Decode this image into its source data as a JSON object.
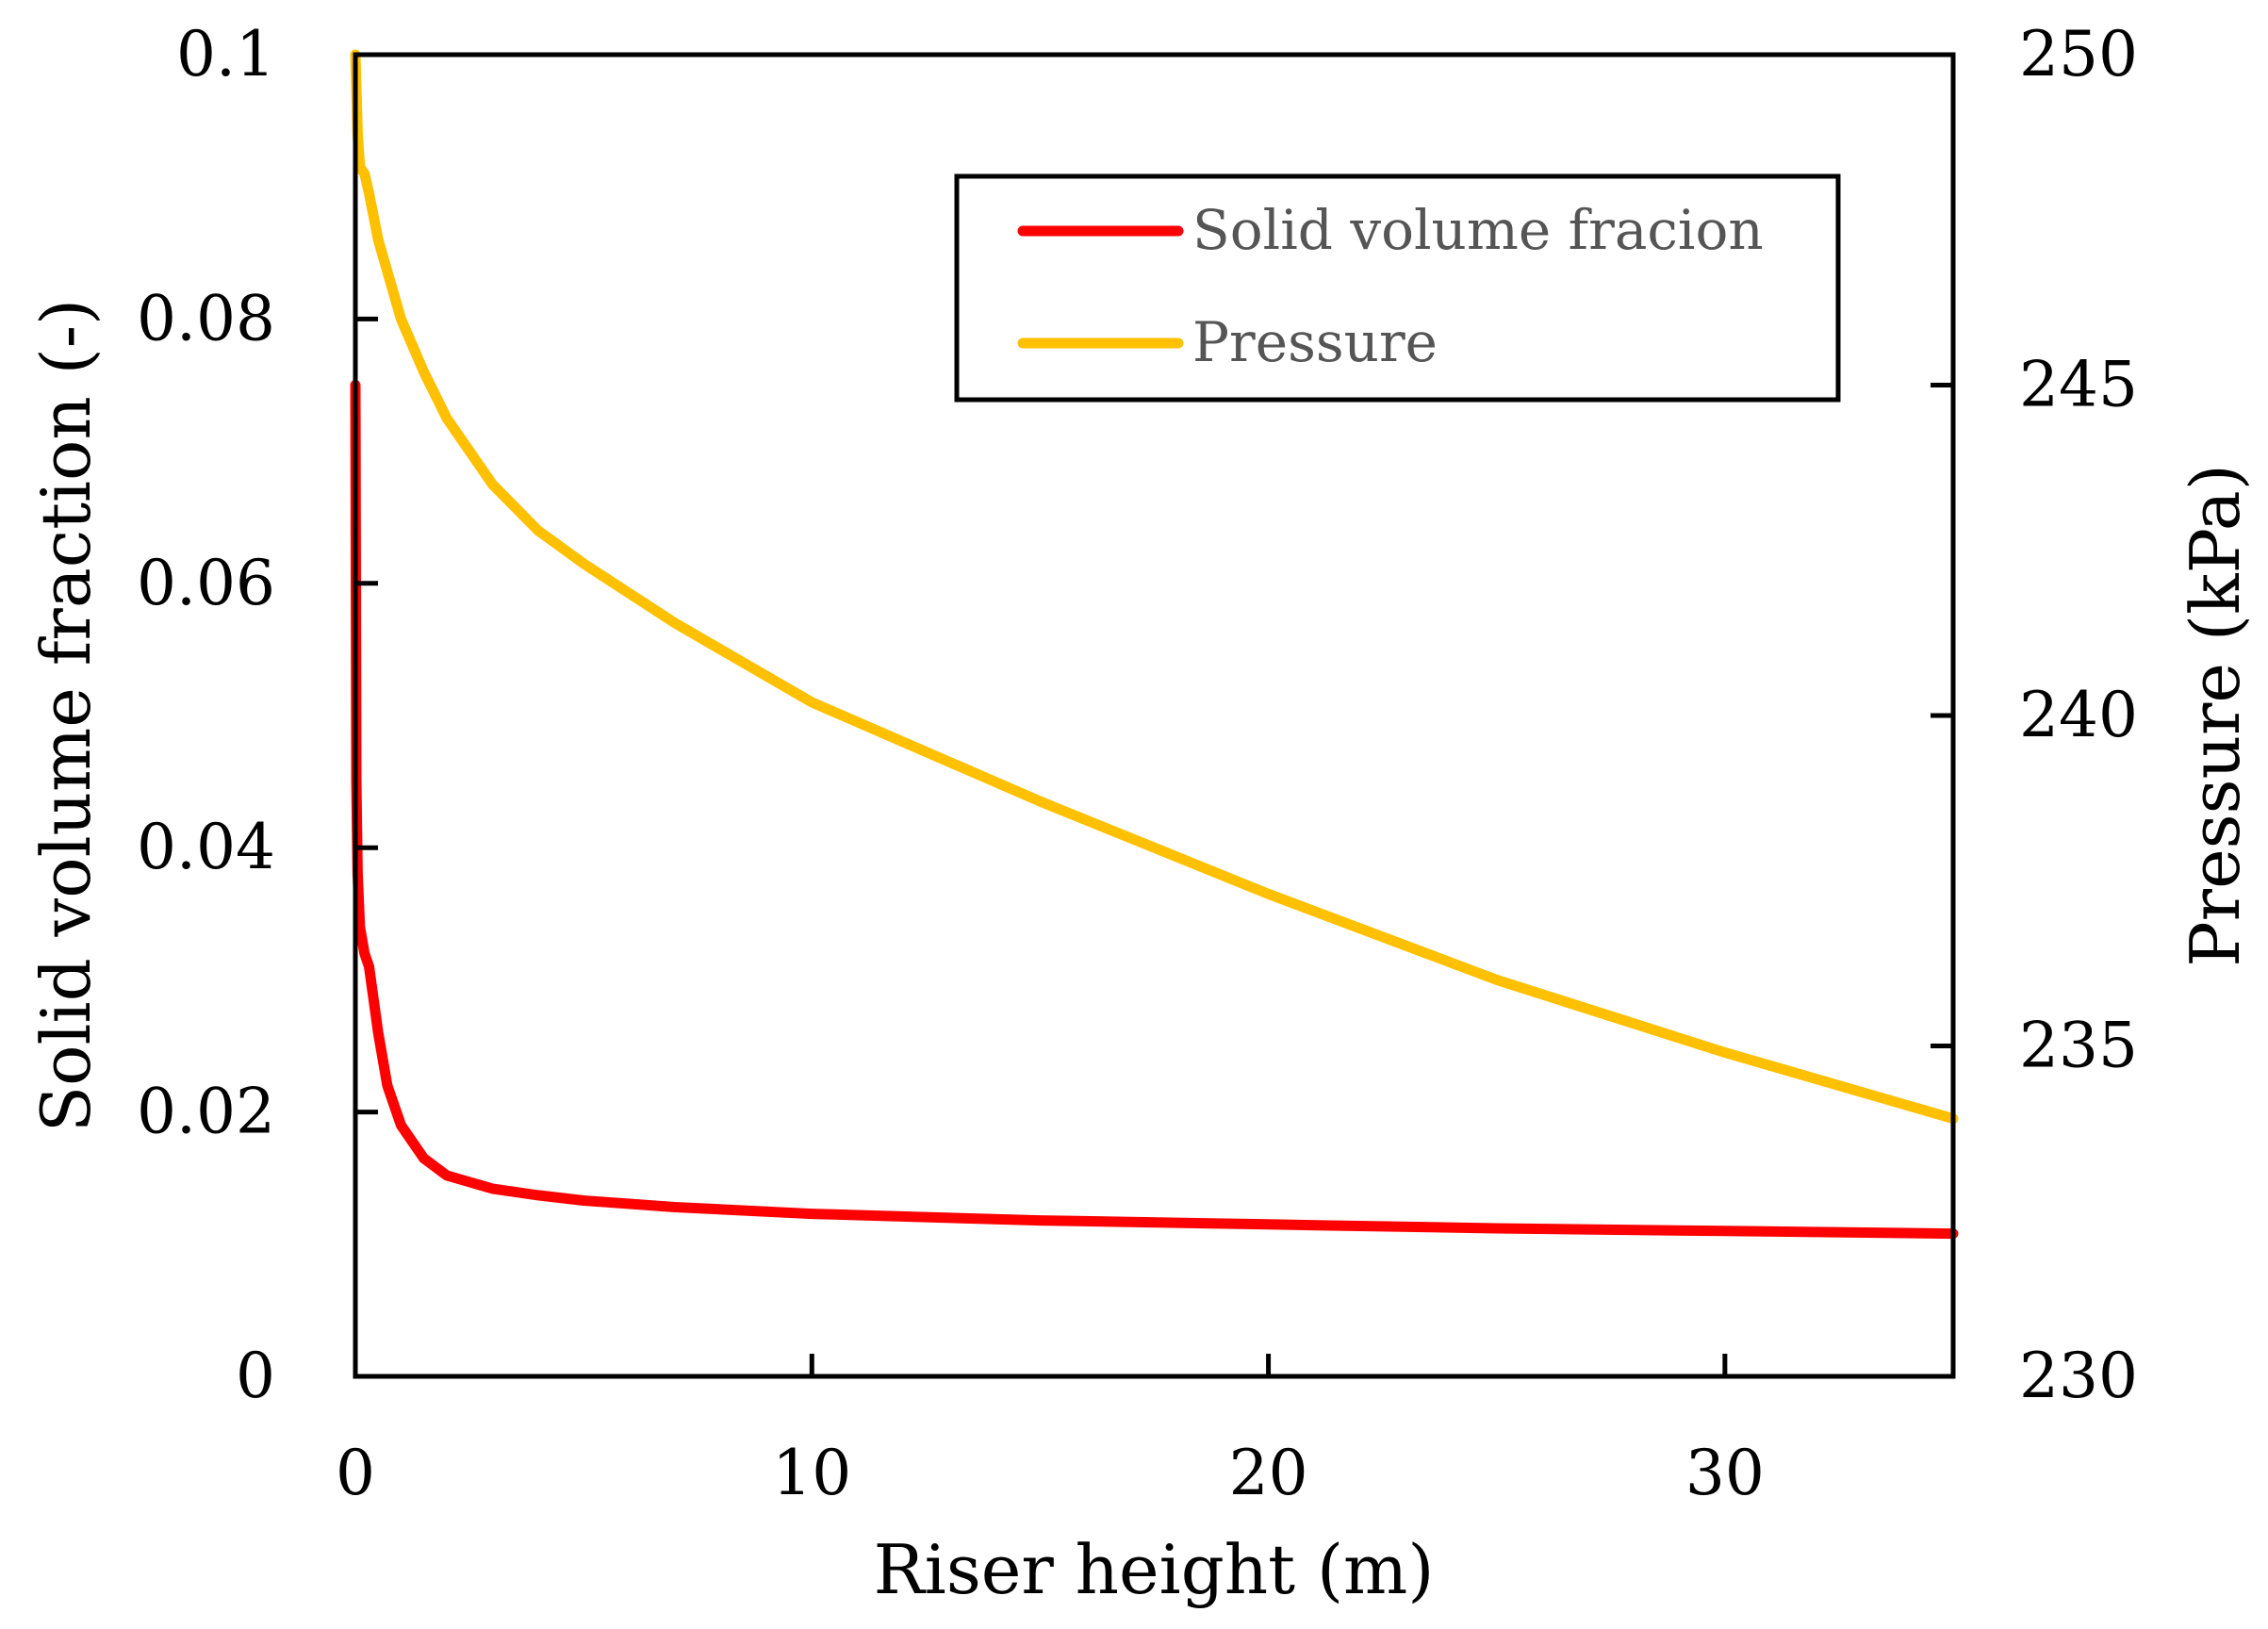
{
  "chart_data": {
    "type": "line",
    "title": "",
    "xlabel": "Riser height (m)",
    "ylabel": "Solid volume fraction (-)",
    "y2label": "Pressure (kPa)",
    "xlim": [
      0,
      35
    ],
    "ylim": [
      0,
      0.1
    ],
    "y2lim": [
      230,
      250
    ],
    "xticks": [
      0,
      10,
      20,
      30
    ],
    "yticks": [
      0,
      0.02,
      0.04,
      0.06,
      0.08,
      0.1
    ],
    "y2ticks": [
      230,
      235,
      240,
      245,
      250
    ],
    "xtick_labels": [
      "0",
      "10",
      "20",
      "30"
    ],
    "ytick_labels": [
      "0",
      "0.02",
      "0.04",
      "0.06",
      "0.08",
      "0.1"
    ],
    "y2tick_labels": [
      "230",
      "235",
      "240",
      "245",
      "250"
    ],
    "grid": false,
    "legend_position": "top-right",
    "series": [
      {
        "name": "Solid volume fracion",
        "axis": "left",
        "color": "#ff0000",
        "x": [
          0,
          0.02,
          0.05,
          0.1,
          0.2,
          0.3,
          0.5,
          0.7,
          1,
          1.5,
          2,
          3,
          4,
          5,
          7,
          10,
          15,
          20,
          25,
          30,
          35
        ],
        "y": [
          0.075,
          0.045,
          0.038,
          0.034,
          0.032,
          0.031,
          0.026,
          0.022,
          0.019,
          0.0165,
          0.0152,
          0.0142,
          0.0137,
          0.0133,
          0.0128,
          0.0123,
          0.0118,
          0.0115,
          0.0112,
          0.011,
          0.0108
        ]
      },
      {
        "name": "Pressure",
        "axis": "right",
        "color": "#ffc000",
        "x": [
          0,
          0.05,
          0.1,
          0.2,
          0.3,
          0.5,
          1,
          1.5,
          2,
          3,
          4,
          5,
          7,
          10,
          15,
          20,
          25,
          30,
          35
        ],
        "y": [
          250,
          248.8,
          248.3,
          248.2,
          247.9,
          247.2,
          246,
          245.2,
          244.5,
          243.5,
          242.8,
          242.3,
          241.4,
          240.2,
          238.7,
          237.3,
          236.0,
          234.9,
          233.9
        ]
      }
    ]
  }
}
